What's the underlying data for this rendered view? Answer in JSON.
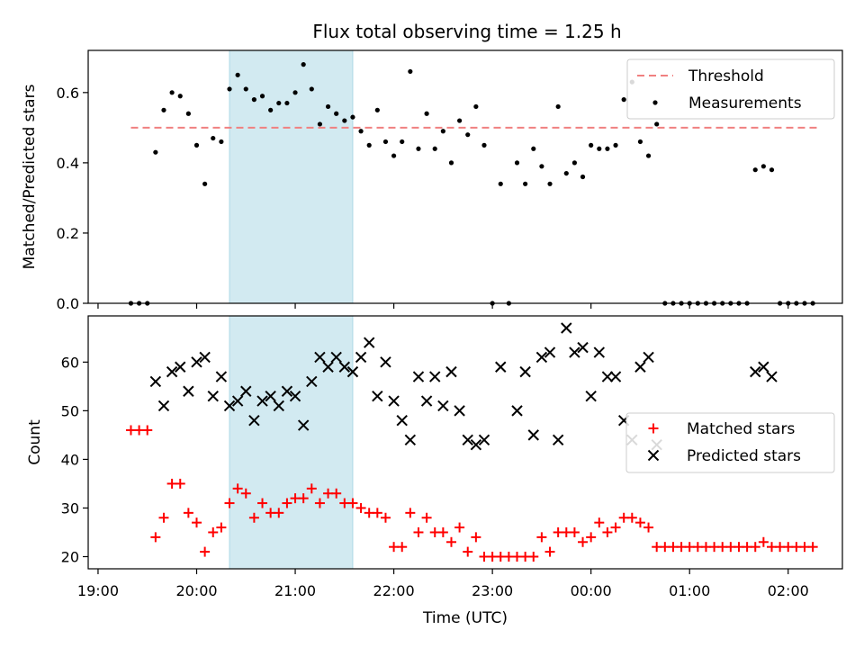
{
  "figure": {
    "title": "Flux total observing time = 1.25 h",
    "xlabel": "Time (UTC)",
    "shaded_span": {
      "start": "20:20",
      "end": "21:35",
      "color": "#add8e6"
    }
  },
  "chart_data": [
    {
      "type": "scatter",
      "panel": "top",
      "ylabel": "Matched/Predicted stars",
      "ylim": [
        0.0,
        0.72
      ],
      "yticks": [
        "0.0",
        "0.2",
        "0.4",
        "0.6"
      ],
      "yticks_values": [
        0.0,
        0.2,
        0.4,
        0.6
      ],
      "legend_position": "upper-right",
      "threshold": {
        "name": "Threshold",
        "value": 0.5,
        "x_range": [
          "19:20",
          "02:20"
        ],
        "color": "#f08080"
      },
      "series": [
        {
          "name": "Measurements",
          "color": "#000000",
          "points": [
            [
              "19:20",
              0.0
            ],
            [
              "19:25",
              0.0
            ],
            [
              "19:30",
              0.0
            ],
            [
              "19:35",
              0.43
            ],
            [
              "19:40",
              0.55
            ],
            [
              "19:45",
              0.6
            ],
            [
              "19:50",
              0.59
            ],
            [
              "19:55",
              0.54
            ],
            [
              "20:00",
              0.45
            ],
            [
              "20:05",
              0.34
            ],
            [
              "20:10",
              0.47
            ],
            [
              "20:15",
              0.46
            ],
            [
              "20:20",
              0.61
            ],
            [
              "20:25",
              0.65
            ],
            [
              "20:30",
              0.61
            ],
            [
              "20:35",
              0.58
            ],
            [
              "20:40",
              0.59
            ],
            [
              "20:45",
              0.55
            ],
            [
              "20:50",
              0.57
            ],
            [
              "20:55",
              0.57
            ],
            [
              "21:00",
              0.6
            ],
            [
              "21:05",
              0.68
            ],
            [
              "21:10",
              0.61
            ],
            [
              "21:15",
              0.51
            ],
            [
              "21:20",
              0.56
            ],
            [
              "21:25",
              0.54
            ],
            [
              "21:30",
              0.52
            ],
            [
              "21:35",
              0.53
            ],
            [
              "21:40",
              0.49
            ],
            [
              "21:45",
              0.45
            ],
            [
              "21:50",
              0.55
            ],
            [
              "21:55",
              0.46
            ],
            [
              "22:00",
              0.42
            ],
            [
              "22:05",
              0.46
            ],
            [
              "22:10",
              0.66
            ],
            [
              "22:15",
              0.44
            ],
            [
              "22:20",
              0.54
            ],
            [
              "22:25",
              0.44
            ],
            [
              "22:30",
              0.49
            ],
            [
              "22:35",
              0.4
            ],
            [
              "22:40",
              0.52
            ],
            [
              "22:45",
              0.48
            ],
            [
              "22:50",
              0.56
            ],
            [
              "22:55",
              0.45
            ],
            [
              "23:00",
              0.0
            ],
            [
              "23:05",
              0.34
            ],
            [
              "23:10",
              0.0
            ],
            [
              "23:15",
              0.4
            ],
            [
              "23:20",
              0.34
            ],
            [
              "23:25",
              0.44
            ],
            [
              "23:30",
              0.39
            ],
            [
              "23:35",
              0.34
            ],
            [
              "23:40",
              0.56
            ],
            [
              "23:45",
              0.37
            ],
            [
              "23:50",
              0.4
            ],
            [
              "23:55",
              0.36
            ],
            [
              "00:00",
              0.45
            ],
            [
              "00:05",
              0.44
            ],
            [
              "00:10",
              0.44
            ],
            [
              "00:15",
              0.45
            ],
            [
              "00:20",
              0.58
            ],
            [
              "00:25",
              0.63
            ],
            [
              "00:30",
              0.46
            ],
            [
              "00:35",
              0.42
            ],
            [
              "00:40",
              0.51
            ],
            [
              "00:45",
              0.0
            ],
            [
              "00:50",
              0.0
            ],
            [
              "00:55",
              0.0
            ],
            [
              "01:00",
              0.0
            ],
            [
              "01:05",
              0.0
            ],
            [
              "01:10",
              0.0
            ],
            [
              "01:15",
              0.0
            ],
            [
              "01:20",
              0.0
            ],
            [
              "01:25",
              0.0
            ],
            [
              "01:30",
              0.0
            ],
            [
              "01:35",
              0.0
            ],
            [
              "01:40",
              0.38
            ],
            [
              "01:45",
              0.39
            ],
            [
              "01:50",
              0.38
            ],
            [
              "01:55",
              0.0
            ],
            [
              "02:00",
              0.0
            ],
            [
              "02:05",
              0.0
            ],
            [
              "02:10",
              0.0
            ],
            [
              "02:15",
              0.0
            ]
          ]
        }
      ]
    },
    {
      "type": "scatter",
      "panel": "bottom",
      "ylabel": "Count",
      "ylim": [
        17.5,
        69.5
      ],
      "yticks": [
        "20",
        "30",
        "40",
        "50",
        "60"
      ],
      "yticks_values": [
        20,
        30,
        40,
        50,
        60
      ],
      "legend_position": "center-right",
      "series": [
        {
          "name": "Matched stars",
          "marker": "+",
          "color": "#ff0000",
          "points": [
            [
              "19:20",
              46
            ],
            [
              "19:25",
              46
            ],
            [
              "19:30",
              46
            ],
            [
              "19:35",
              24
            ],
            [
              "19:40",
              28
            ],
            [
              "19:45",
              35
            ],
            [
              "19:50",
              35
            ],
            [
              "19:55",
              29
            ],
            [
              "20:00",
              27
            ],
            [
              "20:05",
              21
            ],
            [
              "20:10",
              25
            ],
            [
              "20:15",
              26
            ],
            [
              "20:20",
              31
            ],
            [
              "20:25",
              34
            ],
            [
              "20:30",
              33
            ],
            [
              "20:35",
              28
            ],
            [
              "20:40",
              31
            ],
            [
              "20:45",
              29
            ],
            [
              "20:50",
              29
            ],
            [
              "20:55",
              31
            ],
            [
              "21:00",
              32
            ],
            [
              "21:05",
              32
            ],
            [
              "21:10",
              34
            ],
            [
              "21:15",
              31
            ],
            [
              "21:20",
              33
            ],
            [
              "21:25",
              33
            ],
            [
              "21:30",
              31
            ],
            [
              "21:35",
              31
            ],
            [
              "21:40",
              30
            ],
            [
              "21:45",
              29
            ],
            [
              "21:50",
              29
            ],
            [
              "21:55",
              28
            ],
            [
              "22:00",
              22
            ],
            [
              "22:05",
              22
            ],
            [
              "22:10",
              29
            ],
            [
              "22:15",
              25
            ],
            [
              "22:20",
              28
            ],
            [
              "22:25",
              25
            ],
            [
              "22:30",
              25
            ],
            [
              "22:35",
              23
            ],
            [
              "22:40",
              26
            ],
            [
              "22:45",
              21
            ],
            [
              "22:50",
              24
            ],
            [
              "22:55",
              20
            ],
            [
              "23:00",
              20
            ],
            [
              "23:05",
              20
            ],
            [
              "23:10",
              20
            ],
            [
              "23:15",
              20
            ],
            [
              "23:20",
              20
            ],
            [
              "23:25",
              20
            ],
            [
              "23:30",
              24
            ],
            [
              "23:35",
              21
            ],
            [
              "23:40",
              25
            ],
            [
              "23:45",
              25
            ],
            [
              "23:50",
              25
            ],
            [
              "23:55",
              23
            ],
            [
              "00:00",
              24
            ],
            [
              "00:05",
              27
            ],
            [
              "00:10",
              25
            ],
            [
              "00:15",
              26
            ],
            [
              "00:20",
              28
            ],
            [
              "00:25",
              28
            ],
            [
              "00:30",
              27
            ],
            [
              "00:35",
              26
            ],
            [
              "00:40",
              22
            ],
            [
              "00:45",
              22
            ],
            [
              "00:50",
              22
            ],
            [
              "00:55",
              22
            ],
            [
              "01:00",
              22
            ],
            [
              "01:05",
              22
            ],
            [
              "01:10",
              22
            ],
            [
              "01:15",
              22
            ],
            [
              "01:20",
              22
            ],
            [
              "01:25",
              22
            ],
            [
              "01:30",
              22
            ],
            [
              "01:35",
              22
            ],
            [
              "01:40",
              22
            ],
            [
              "01:45",
              23
            ],
            [
              "01:50",
              22
            ],
            [
              "01:55",
              22
            ],
            [
              "02:00",
              22
            ],
            [
              "02:05",
              22
            ],
            [
              "02:10",
              22
            ],
            [
              "02:15",
              22
            ]
          ]
        },
        {
          "name": "Predicted stars",
          "marker": "x",
          "color": "#000000",
          "points": [
            [
              "19:35",
              56
            ],
            [
              "19:40",
              51
            ],
            [
              "19:45",
              58
            ],
            [
              "19:50",
              59
            ],
            [
              "19:55",
              54
            ],
            [
              "20:00",
              60
            ],
            [
              "20:05",
              61
            ],
            [
              "20:10",
              53
            ],
            [
              "20:15",
              57
            ],
            [
              "20:20",
              51
            ],
            [
              "20:25",
              52
            ],
            [
              "20:30",
              54
            ],
            [
              "20:35",
              48
            ],
            [
              "20:40",
              52
            ],
            [
              "20:45",
              53
            ],
            [
              "20:50",
              51
            ],
            [
              "20:55",
              54
            ],
            [
              "21:00",
              53
            ],
            [
              "21:05",
              47
            ],
            [
              "21:10",
              56
            ],
            [
              "21:15",
              61
            ],
            [
              "21:20",
              59
            ],
            [
              "21:25",
              61
            ],
            [
              "21:30",
              59
            ],
            [
              "21:35",
              58
            ],
            [
              "21:40",
              61
            ],
            [
              "21:45",
              64
            ],
            [
              "21:50",
              53
            ],
            [
              "21:55",
              60
            ],
            [
              "22:00",
              52
            ],
            [
              "22:05",
              48
            ],
            [
              "22:10",
              44
            ],
            [
              "22:15",
              57
            ],
            [
              "22:20",
              52
            ],
            [
              "22:25",
              57
            ],
            [
              "22:30",
              51
            ],
            [
              "22:35",
              58
            ],
            [
              "22:40",
              50
            ],
            [
              "22:45",
              44
            ],
            [
              "22:50",
              43
            ],
            [
              "22:55",
              44
            ],
            [
              "23:05",
              59
            ],
            [
              "23:15",
              50
            ],
            [
              "23:20",
              58
            ],
            [
              "23:25",
              45
            ],
            [
              "23:30",
              61
            ],
            [
              "23:35",
              62
            ],
            [
              "23:40",
              44
            ],
            [
              "23:45",
              67
            ],
            [
              "23:50",
              62
            ],
            [
              "23:55",
              63
            ],
            [
              "00:00",
              53
            ],
            [
              "00:05",
              62
            ],
            [
              "00:10",
              57
            ],
            [
              "00:15",
              57
            ],
            [
              "00:20",
              48
            ],
            [
              "00:25",
              44
            ],
            [
              "00:30",
              59
            ],
            [
              "00:35",
              61
            ],
            [
              "00:40",
              43
            ],
            [
              "01:40",
              58
            ],
            [
              "01:45",
              59
            ],
            [
              "01:50",
              57
            ]
          ]
        }
      ]
    }
  ],
  "x_axis": {
    "range_hours": [
      18.9,
      26.55
    ],
    "ticks": [
      {
        "label": "19:00",
        "hour": 19
      },
      {
        "label": "20:00",
        "hour": 20
      },
      {
        "label": "21:00",
        "hour": 21
      },
      {
        "label": "22:00",
        "hour": 22
      },
      {
        "label": "23:00",
        "hour": 23
      },
      {
        "label": "00:00",
        "hour": 24
      },
      {
        "label": "01:00",
        "hour": 25
      },
      {
        "label": "02:00",
        "hour": 26
      }
    ]
  }
}
